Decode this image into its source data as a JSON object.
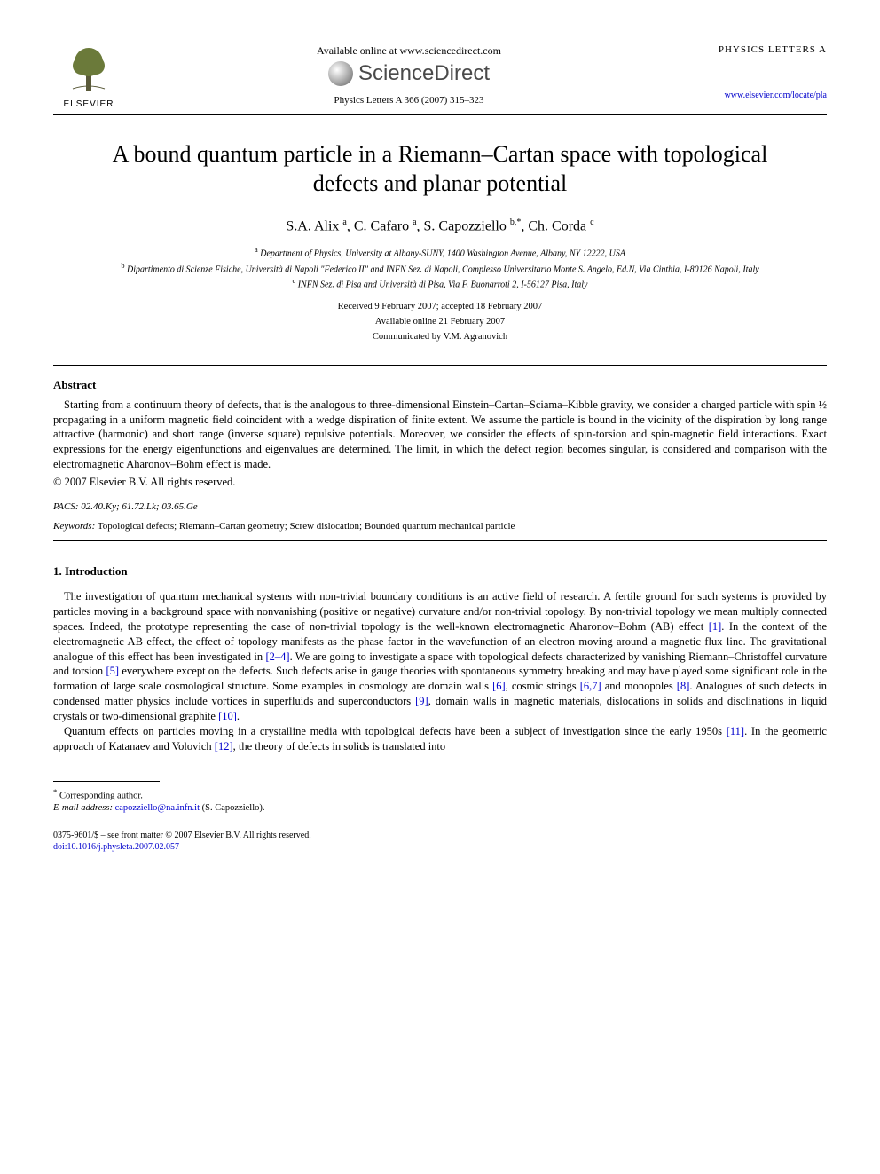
{
  "header": {
    "publisher_label": "ELSEVIER",
    "available_text": "Available online at www.sciencedirect.com",
    "sciencedirect_label": "ScienceDirect",
    "citation": "Physics Letters A 366 (2007) 315–323",
    "journal_brand": "PHYSICS LETTERS A",
    "journal_url": "www.elsevier.com/locate/pla"
  },
  "title_line1": "A bound quantum particle in a Riemann–Cartan space with topological",
  "title_line2": "defects and planar potential",
  "authors_html": "S.A. Alix <sup>a</sup>, C. Cafaro <sup>a</sup>, S. Capozziello <sup>b,*</sup>, Ch. Corda <sup>c</sup>",
  "affiliations": {
    "a": "Department of Physics, University at Albany-SUNY, 1400 Washington Avenue, Albany, NY 12222, USA",
    "b": "Dipartimento di Scienze Fisiche, Università di Napoli \"Federico II\" and INFN Sez. di Napoli, Complesso Universitario Monte S. Angelo, Ed.N, Via Cinthia, I-80126 Napoli, Italy",
    "c": "INFN Sez. di Pisa and Università di Pisa, Via F. Buonarroti 2, I-56127 Pisa, Italy"
  },
  "dates": {
    "received": "Received 9 February 2007; accepted 18 February 2007",
    "online": "Available online 21 February 2007",
    "communicated": "Communicated by V.M. Agranovich"
  },
  "abstract_heading": "Abstract",
  "abstract_text": "Starting from a continuum theory of defects, that is the analogous to three-dimensional Einstein–Cartan–Sciama–Kibble gravity, we consider a charged particle with spin ½ propagating in a uniform magnetic field coincident with a wedge dispiration of finite extent. We assume the particle is bound in the vicinity of the dispiration by long range attractive (harmonic) and short range (inverse square) repulsive potentials. Moreover, we consider the effects of spin-torsion and spin-magnetic field interactions. Exact expressions for the energy eigenfunctions and eigenvalues are determined. The limit, in which the defect region becomes singular, is considered and comparison with the electromagnetic Aharonov–Bohm effect is made.",
  "copyright": "© 2007 Elsevier B.V. All rights reserved.",
  "pacs": {
    "label": "PACS:",
    "value": "02.40.Ky; 61.72.Lk; 03.65.Ge"
  },
  "keywords": {
    "label": "Keywords:",
    "value": "Topological defects; Riemann–Cartan geometry; Screw dislocation; Bounded quantum mechanical particle"
  },
  "section1_heading": "1. Introduction",
  "body": {
    "p1a": "The investigation of quantum mechanical systems with non-trivial boundary conditions is an active field of research. A fertile ground for such systems is provided by particles moving in a background space with nonvanishing (positive or negative) curvature and/or non-trivial topology. By non-trivial topology we mean multiply connected spaces. Indeed, the prototype representing the case of non-trivial topology is the well-known electromagnetic Aharonov–Bohm (AB) effect ",
    "c1": "[1]",
    "p1b": ". In the context of the electromagnetic AB effect, the effect of topology manifests as the phase factor in the wavefunction of an electron moving around a magnetic flux line. The gravitational analogue of this effect has been investigated in ",
    "c2": "[2–4]",
    "p1c": ". We are going to investigate a space with topological defects characterized by vanishing Riemann–Christoffel curvature and torsion ",
    "c5": "[5]",
    "p1d": " everywhere except on the defects. Such defects arise in gauge theories with spontaneous symmetry breaking and may have played some significant role in the formation of large scale cosmological structure. Some examples in cosmology are domain walls ",
    "c6": "[6]",
    "p1e": ", cosmic strings ",
    "c67": "[6,7]",
    "p1f": " and monopoles ",
    "c8": "[8]",
    "p1g": ". Analogues of such defects in condensed matter physics include vortices in superfluids and superconductors ",
    "c9": "[9]",
    "p1h": ", domain walls in magnetic materials, dislocations in solids and disclinations in liquid crystals or two-dimensional graphite ",
    "c10": "[10]",
    "p1i": ".",
    "p2a": "Quantum effects on particles moving in a crystalline media with topological defects have been a subject of investigation since the early 1950s ",
    "c11": "[11]",
    "p2b": ". In the geometric approach of Katanaev and Volovich ",
    "c12": "[12]",
    "p2c": ", the theory of defects in solids is translated into"
  },
  "footnote": {
    "corresponding": "Corresponding author.",
    "email_label": "E-mail address:",
    "email": "capozziello@na.infn.it",
    "email_who": "(S. Capozziello)."
  },
  "footer": {
    "line1": "0375-9601/$ – see front matter © 2007 Elsevier B.V. All rights reserved.",
    "doi": "doi:10.1016/j.physleta.2007.02.057"
  },
  "colors": {
    "link": "#0000cc",
    "text": "#000000",
    "background": "#ffffff",
    "sd_text": "#4a4a4a"
  },
  "typography": {
    "title_fontsize": 26,
    "authors_fontsize": 16,
    "body_fontsize": 12.5,
    "affil_fontsize": 10,
    "footer_fontsize": 10
  }
}
